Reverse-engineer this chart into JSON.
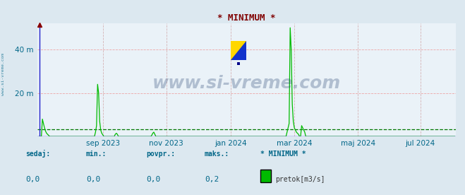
{
  "title": "* MINIMUM *",
  "title_color": "#800000",
  "background_color": "#dce8f0",
  "plot_bg_color": "#eaf2f8",
  "grid_color_h": "#ee9999",
  "grid_color_v": "#cc9999",
  "line_color": "#00bb00",
  "zero_line_color": "#2222cc",
  "arrow_color": "#aa0000",
  "ytick_labels": [
    "",
    "20 m",
    "40 m"
  ],
  "ytick_values": [
    0,
    20,
    40
  ],
  "ylim": [
    0,
    52
  ],
  "tick_label_color": "#006688",
  "watermark": "www.si-vreme.com",
  "watermark_color": "#1a3a6a",
  "watermark_alpha": 0.28,
  "footer_labels": [
    "sedaj:",
    "min.:",
    "povpr.:",
    "maks.:",
    "* MINIMUM *"
  ],
  "footer_values": [
    "0,0",
    "0,0",
    "0,0",
    "0,2"
  ],
  "footer_legend_label": "pretok[m3/s]",
  "footer_legend_color": "#00bb00",
  "sidebar_text": "www.si-vreme.com",
  "sidebar_color": "#006688",
  "dashed_line_value": 3.2,
  "dashed_line_color": "#007700",
  "x_tick_labels": [
    "sep 2023",
    "nov 2023",
    "jan 2024",
    "mar 2024",
    "maj 2024",
    "jul 2024"
  ],
  "x_tick_label_positions": [
    61,
    122,
    184,
    245,
    306,
    366
  ],
  "n_days": 400,
  "xlim_end": 400
}
